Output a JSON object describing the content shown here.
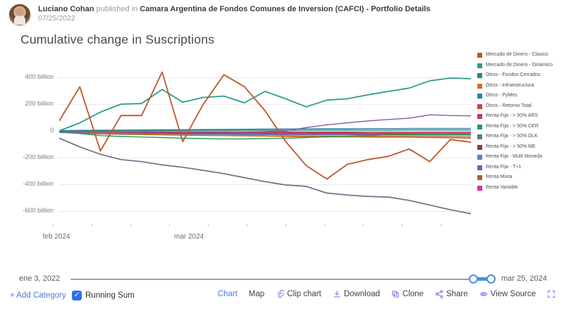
{
  "header": {
    "author": "Luciano Cohan",
    "published_in": "published in",
    "publication": "Camara Argentina de Fondos Comunes de Inversion (CAFCI) - Portfolio Details",
    "date": "07/25/2022"
  },
  "title": "Cumulative change in Suscriptions",
  "chart_data": {
    "type": "line",
    "title": "Cumulative change in Suscriptions",
    "unit": "billion",
    "ylim": [
      -700,
      500
    ],
    "y_grid_values": [
      400,
      200,
      0,
      -200,
      -400,
      -600
    ],
    "y_ticks": [
      "400 billion",
      "200 billion",
      "0",
      "-200 billion",
      "-400 billion",
      "-600 billion"
    ],
    "x_tick_labels": [
      "feb 2024",
      "mar 2024"
    ],
    "x": [
      1,
      2,
      3,
      4,
      5,
      6,
      7,
      8,
      9,
      10,
      11,
      12,
      13,
      14,
      15,
      16,
      17,
      18,
      19,
      20,
      21
    ],
    "grid": true,
    "legend_position": "right",
    "series": [
      {
        "name": "Renta Variable",
        "color": "#cb35a6",
        "values": [
          -3,
          -5,
          -6,
          -7,
          -8,
          -8,
          -9,
          -9,
          -10,
          -10,
          -10,
          -11,
          -11,
          -11,
          -12,
          -12,
          -12,
          -12,
          -13,
          -13,
          -13
        ]
      },
      {
        "name": "Renta Mixta",
        "color": "#a8622f",
        "values": [
          -12,
          -18,
          -22,
          -26,
          -28,
          -30,
          -32,
          -34,
          -35,
          -36,
          -37,
          -38,
          -39,
          -40,
          -40,
          -41,
          -42,
          -42,
          -43,
          -44,
          -45
        ]
      },
      {
        "name": "Renta Fija - Multi Moneda",
        "color": "#5b7ec9",
        "values": [
          -10,
          -14,
          -17,
          -20,
          -22,
          -24,
          -25,
          -26,
          -27,
          -28,
          -28,
          -29,
          -29,
          -30,
          -30,
          -30,
          -31,
          -31,
          -32,
          -32,
          -32
        ]
      },
      {
        "name": "Renta Fija - > 50% ME",
        "color": "#9e3547",
        "values": [
          -6,
          -9,
          -12,
          -14,
          -16,
          -17,
          -18,
          -19,
          -20,
          -20,
          -21,
          -21,
          -22,
          -22,
          -22,
          -23,
          -23,
          -23,
          -24,
          -24,
          -24
        ]
      },
      {
        "name": "Renta Fija - > 50% ARS",
        "color": "#c13a66",
        "values": [
          -4,
          -6,
          -8,
          -9,
          -10,
          -11,
          -12,
          -12,
          -13,
          -13,
          -14,
          -14,
          -14,
          -15,
          -15,
          -15,
          -16,
          -16,
          -16,
          -16,
          -16
        ]
      },
      {
        "name": "Otros - Retorno Total",
        "color": "#d63b52",
        "values": [
          -2,
          -3,
          -4,
          -5,
          -5,
          -6,
          -6,
          -7,
          -7,
          -8,
          -8,
          -8,
          -9,
          -9,
          -9,
          -10,
          -10,
          -10,
          -10,
          -10,
          -10
        ]
      },
      {
        "name": "Otros - Infraestructura",
        "color": "#d2702c",
        "values": [
          -3,
          -8,
          -14,
          -18,
          -22,
          -26,
          -30,
          -33,
          -36,
          -38,
          -40,
          -42,
          -44,
          -45,
          -46,
          -47,
          -48,
          -48,
          -50,
          -52,
          -55
        ]
      },
      {
        "name": "Otros - Fondos Cerrados",
        "color": "#258b74",
        "values": [
          1,
          2,
          2,
          3,
          3,
          3,
          4,
          4,
          4,
          5,
          5,
          5,
          5,
          6,
          6,
          6,
          6,
          7,
          7,
          7,
          7
        ]
      },
      {
        "name": "Otros - PyMes",
        "color": "#2e7fa3",
        "values": [
          2,
          4,
          5,
          6,
          7,
          8,
          9,
          10,
          11,
          12,
          13,
          14,
          15,
          16,
          16,
          17,
          17,
          18,
          18,
          18,
          18
        ]
      },
      {
        "name": "Renta Fija - > 50% CER",
        "color": "#1fa055",
        "values": [
          -5,
          -20,
          -35,
          -42,
          -46,
          -50,
          -55,
          -58,
          -60,
          -60,
          -58,
          -55,
          -50,
          -45,
          -40,
          -35,
          -30,
          -28,
          -26,
          -25,
          -25
        ]
      },
      {
        "name": "Renta Fija - T+1",
        "color": "#8a56ad",
        "values": [
          -8,
          -8,
          -8,
          -8,
          -8,
          -8,
          -8,
          -8,
          -8,
          -8,
          -5,
          0,
          25,
          45,
          60,
          75,
          85,
          95,
          120,
          115,
          112
        ]
      },
      {
        "name": "Renta Fija - > 50% DLK",
        "color": "#64758a",
        "values": [
          -55,
          -120,
          -175,
          -215,
          -230,
          -255,
          -272,
          -295,
          -320,
          -350,
          -380,
          -405,
          -415,
          -465,
          -480,
          -490,
          -495,
          -520,
          -555,
          -590,
          -620
        ]
      },
      {
        "name": "Mercado de Dinero - Dinamico",
        "color": "#2a9d8f",
        "values": [
          0,
          60,
          140,
          200,
          205,
          310,
          215,
          250,
          260,
          210,
          295,
          240,
          180,
          230,
          240,
          270,
          295,
          320,
          375,
          395,
          390
        ]
      },
      {
        "name": "Mercado de Dinero - Clasico",
        "color": "#c0562f",
        "values": [
          75,
          330,
          -150,
          115,
          115,
          440,
          -80,
          200,
          420,
          330,
          150,
          -80,
          -260,
          -360,
          -250,
          -215,
          -190,
          -135,
          -230,
          -65,
          -85
        ]
      }
    ],
    "legend_order": [
      "Mercado de Dinero - Clasico",
      "Mercado de Dinero - Dinamico",
      "Otros - Fondos Cerrados",
      "Otros - Infraestructura",
      "Otros - PyMes",
      "Otros - Retorno Total",
      "Renta Fija - > 50% ARS",
      "Renta Fija - > 50% CER",
      "Renta Fija - > 50% DLK",
      "Renta Fija - > 50% ME",
      "Renta Fija - Multi Moneda",
      "Renta Fija - T+1",
      "Renta Mixta",
      "Renta Variable"
    ]
  },
  "slider": {
    "start_label": "ene 3, 2022",
    "end_label": "mar 25, 2024"
  },
  "toolbar": {
    "plus": "+",
    "add_category": "Add Category",
    "checkbox_glyph": "✓",
    "running_sum": "Running Sum",
    "actions": [
      {
        "label": "Chart",
        "icon": "",
        "active": true
      },
      {
        "label": "Map",
        "icon": ""
      },
      {
        "label": "Clip chart",
        "icon": "paperclip"
      },
      {
        "label": "Download",
        "icon": "download"
      },
      {
        "label": "Clone",
        "icon": "clone"
      },
      {
        "label": "Share",
        "icon": "share"
      },
      {
        "label": "View Source",
        "icon": "eye"
      },
      {
        "label": "",
        "icon": "fullscreen"
      }
    ]
  }
}
